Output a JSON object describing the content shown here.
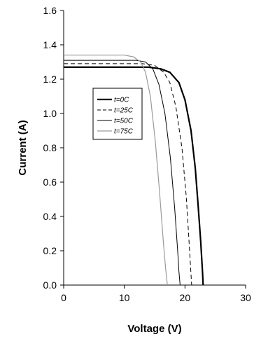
{
  "chart_data": {
    "type": "line",
    "xlabel": "Voltage (V)",
    "ylabel": "Current (A)",
    "xlim": [
      0,
      30
    ],
    "ylim": [
      0,
      1.6
    ],
    "x_ticks": [
      "0",
      "10",
      "20",
      "30"
    ],
    "y_ticks": [
      "0.0",
      "0.2",
      "0.4",
      "0.6",
      "0.8",
      "1.0",
      "1.2",
      "1.4",
      "1.6"
    ],
    "grid": false,
    "legend_position": "center-left",
    "series": [
      {
        "name": "t=0C",
        "color": "#000000",
        "style": "solid-thick",
        "x": [
          0,
          10,
          14,
          16,
          17.5,
          19,
          20,
          21,
          21.7,
          22.2,
          22.6,
          22.9,
          23.0
        ],
        "y": [
          1.27,
          1.27,
          1.27,
          1.26,
          1.24,
          1.18,
          1.08,
          0.9,
          0.68,
          0.45,
          0.25,
          0.07,
          0.0
        ]
      },
      {
        "name": "t=25C",
        "color": "#000000",
        "style": "dashed",
        "x": [
          0,
          10,
          13,
          15,
          16.5,
          17.5,
          18.5,
          19.5,
          20.2,
          20.6,
          20.9,
          21.1
        ],
        "y": [
          1.29,
          1.29,
          1.29,
          1.28,
          1.24,
          1.18,
          1.04,
          0.8,
          0.52,
          0.3,
          0.12,
          0.0
        ]
      },
      {
        "name": "t=50C",
        "color": "#000000",
        "style": "solid-thin",
        "x": [
          0,
          10,
          12,
          13.5,
          14.7,
          15.7,
          16.7,
          17.6,
          18.3,
          18.8,
          19.0,
          19.2
        ],
        "y": [
          1.31,
          1.31,
          1.31,
          1.3,
          1.26,
          1.17,
          1.0,
          0.74,
          0.45,
          0.2,
          0.08,
          0.0
        ]
      },
      {
        "name": "t=75C",
        "color": "#9a9a9a",
        "style": "solid-grey",
        "x": [
          0,
          8,
          10,
          11.5,
          12.7,
          13.5,
          14.3,
          15.1,
          15.8,
          16.4,
          16.8,
          17.1
        ],
        "y": [
          1.34,
          1.34,
          1.34,
          1.33,
          1.3,
          1.24,
          1.1,
          0.84,
          0.55,
          0.27,
          0.1,
          0.0
        ]
      }
    ]
  }
}
